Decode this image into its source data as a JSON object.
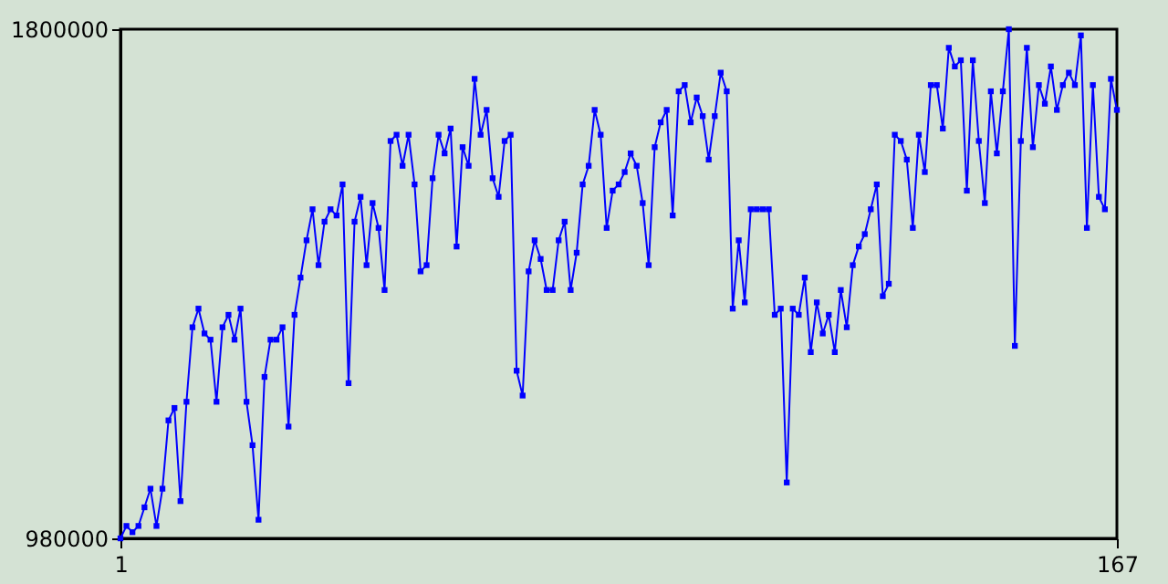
{
  "chart_data": {
    "type": "line",
    "x": [
      1,
      2,
      3,
      4,
      5,
      6,
      7,
      8,
      9,
      10,
      11,
      12,
      13,
      14,
      15,
      16,
      17,
      18,
      19,
      20,
      21,
      22,
      23,
      24,
      25,
      26,
      27,
      28,
      29,
      30,
      31,
      32,
      33,
      34,
      35,
      36,
      37,
      38,
      39,
      40,
      41,
      42,
      43,
      44,
      45,
      46,
      47,
      48,
      49,
      50,
      51,
      52,
      53,
      54,
      55,
      56,
      57,
      58,
      59,
      60,
      61,
      62,
      63,
      64,
      65,
      66,
      67,
      68,
      69,
      70,
      71,
      72,
      73,
      74,
      75,
      76,
      77,
      78,
      79,
      80,
      81,
      82,
      83,
      84,
      85,
      86,
      87,
      88,
      89,
      90,
      91,
      92,
      93,
      94,
      95,
      96,
      97,
      98,
      99,
      100,
      101,
      102,
      103,
      104,
      105,
      106,
      107,
      108,
      109,
      110,
      111,
      112,
      113,
      114,
      115,
      116,
      117,
      118,
      119,
      120,
      121,
      122,
      123,
      124,
      125,
      126,
      127,
      128,
      129,
      130,
      131,
      132,
      133,
      134,
      135,
      136,
      137,
      138,
      139,
      140,
      141,
      142,
      143,
      144,
      145,
      146,
      147,
      148,
      149,
      150,
      151,
      152,
      153,
      154,
      155,
      156,
      157,
      158,
      159,
      160,
      161,
      162,
      163,
      164,
      165,
      166,
      167
    ],
    "series": [
      {
        "color": "#0000ff",
        "values": [
          980000,
          1000000,
          990000,
          1000000,
          1030000,
          1060000,
          1000000,
          1060000,
          1170000,
          1190000,
          1040000,
          1200000,
          1320000,
          1350000,
          1310000,
          1300000,
          1200000,
          1320000,
          1340000,
          1300000,
          1350000,
          1200000,
          1130000,
          1010000,
          1240000,
          1300000,
          1300000,
          1320000,
          1160000,
          1340000,
          1400000,
          1460000,
          1510000,
          1420000,
          1490000,
          1510000,
          1500000,
          1550000,
          1230000,
          1490000,
          1530000,
          1420000,
          1520000,
          1480000,
          1380000,
          1620000,
          1630000,
          1580000,
          1630000,
          1550000,
          1410000,
          1420000,
          1560000,
          1630000,
          1600000,
          1640000,
          1450000,
          1610000,
          1580000,
          1720000,
          1630000,
          1670000,
          1560000,
          1530000,
          1620000,
          1630000,
          1250000,
          1210000,
          1410000,
          1460000,
          1430000,
          1380000,
          1380000,
          1460000,
          1490000,
          1380000,
          1440000,
          1550000,
          1580000,
          1670000,
          1630000,
          1480000,
          1540000,
          1550000,
          1570000,
          1600000,
          1580000,
          1520000,
          1420000,
          1610000,
          1650000,
          1670000,
          1500000,
          1700000,
          1710000,
          1650000,
          1690000,
          1660000,
          1590000,
          1660000,
          1730000,
          1700000,
          1350000,
          1460000,
          1360000,
          1510000,
          1510000,
          1510000,
          1510000,
          1340000,
          1350000,
          1070000,
          1350000,
          1340000,
          1400000,
          1280000,
          1360000,
          1310000,
          1340000,
          1280000,
          1380000,
          1320000,
          1420000,
          1450000,
          1470000,
          1510000,
          1550000,
          1370000,
          1390000,
          1630000,
          1620000,
          1590000,
          1480000,
          1630000,
          1570000,
          1710000,
          1710000,
          1640000,
          1770000,
          1740000,
          1750000,
          1540000,
          1750000,
          1620000,
          1520000,
          1700000,
          1600000,
          1700000,
          1800000,
          1290000,
          1620000,
          1770000,
          1610000,
          1710000,
          1680000,
          1740000,
          1670000,
          1710000,
          1730000,
          1710000,
          1790000,
          1480000,
          1710000,
          1530000,
          1510000,
          1720000,
          1670000
        ]
      }
    ],
    "xlim": [
      1,
      167
    ],
    "xticks": [
      1,
      167
    ],
    "ylim": [
      980000,
      1800000
    ],
    "yticks": [
      980000,
      1800000
    ],
    "grid": false,
    "marker": "square",
    "line_style": "solid"
  }
}
